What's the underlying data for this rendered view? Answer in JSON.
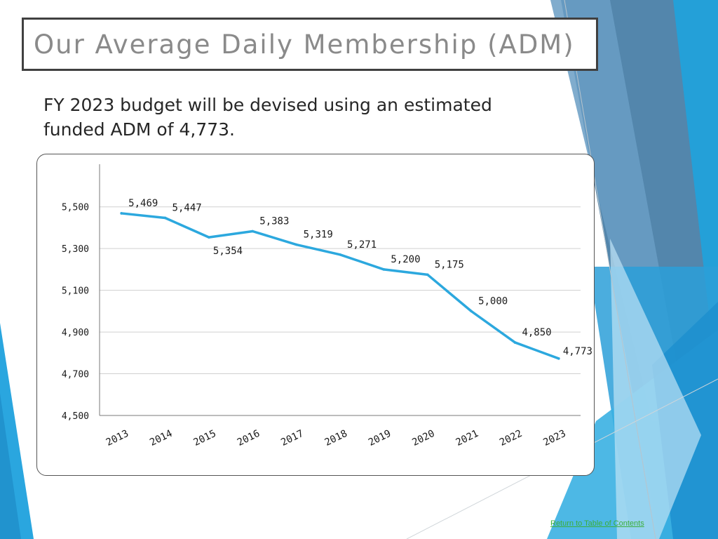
{
  "slide": {
    "title": "Our Average Daily Membership (ADM)",
    "subtitle": "FY 2023 budget will be devised using an estimated funded ADM of 4,773.",
    "toc_link": "Return to Table of Contents"
  },
  "colors": {
    "line": "#2ca8de",
    "grid": "#d0d0d0",
    "axis": "#7a7a7a",
    "title_text": "#8a8a8a",
    "link": "#3cae3c"
  },
  "chart_data": {
    "type": "line",
    "categories": [
      "2013",
      "2014",
      "2015",
      "2016",
      "2017",
      "2018",
      "2019",
      "2020",
      "2021",
      "2022",
      "2023"
    ],
    "values": [
      5469,
      5447,
      5354,
      5383,
      5319,
      5271,
      5200,
      5175,
      5000,
      4850,
      4773
    ],
    "value_labels": [
      "5,469",
      "5,447",
      "5,354",
      "5,383",
      "5,319",
      "5,271",
      "5,200",
      "5,175",
      "5,000",
      "4,850",
      "4,773"
    ],
    "yticks": [
      4500,
      4700,
      4900,
      5100,
      5300,
      5500
    ],
    "ytick_labels": [
      "4,500",
      "4,700",
      "4,900",
      "5,100",
      "5,300",
      "5,500"
    ],
    "ylim": [
      4500,
      5600
    ],
    "title": "",
    "xlabel": "",
    "ylabel": "",
    "grid": "horizontal",
    "legend": "none"
  }
}
